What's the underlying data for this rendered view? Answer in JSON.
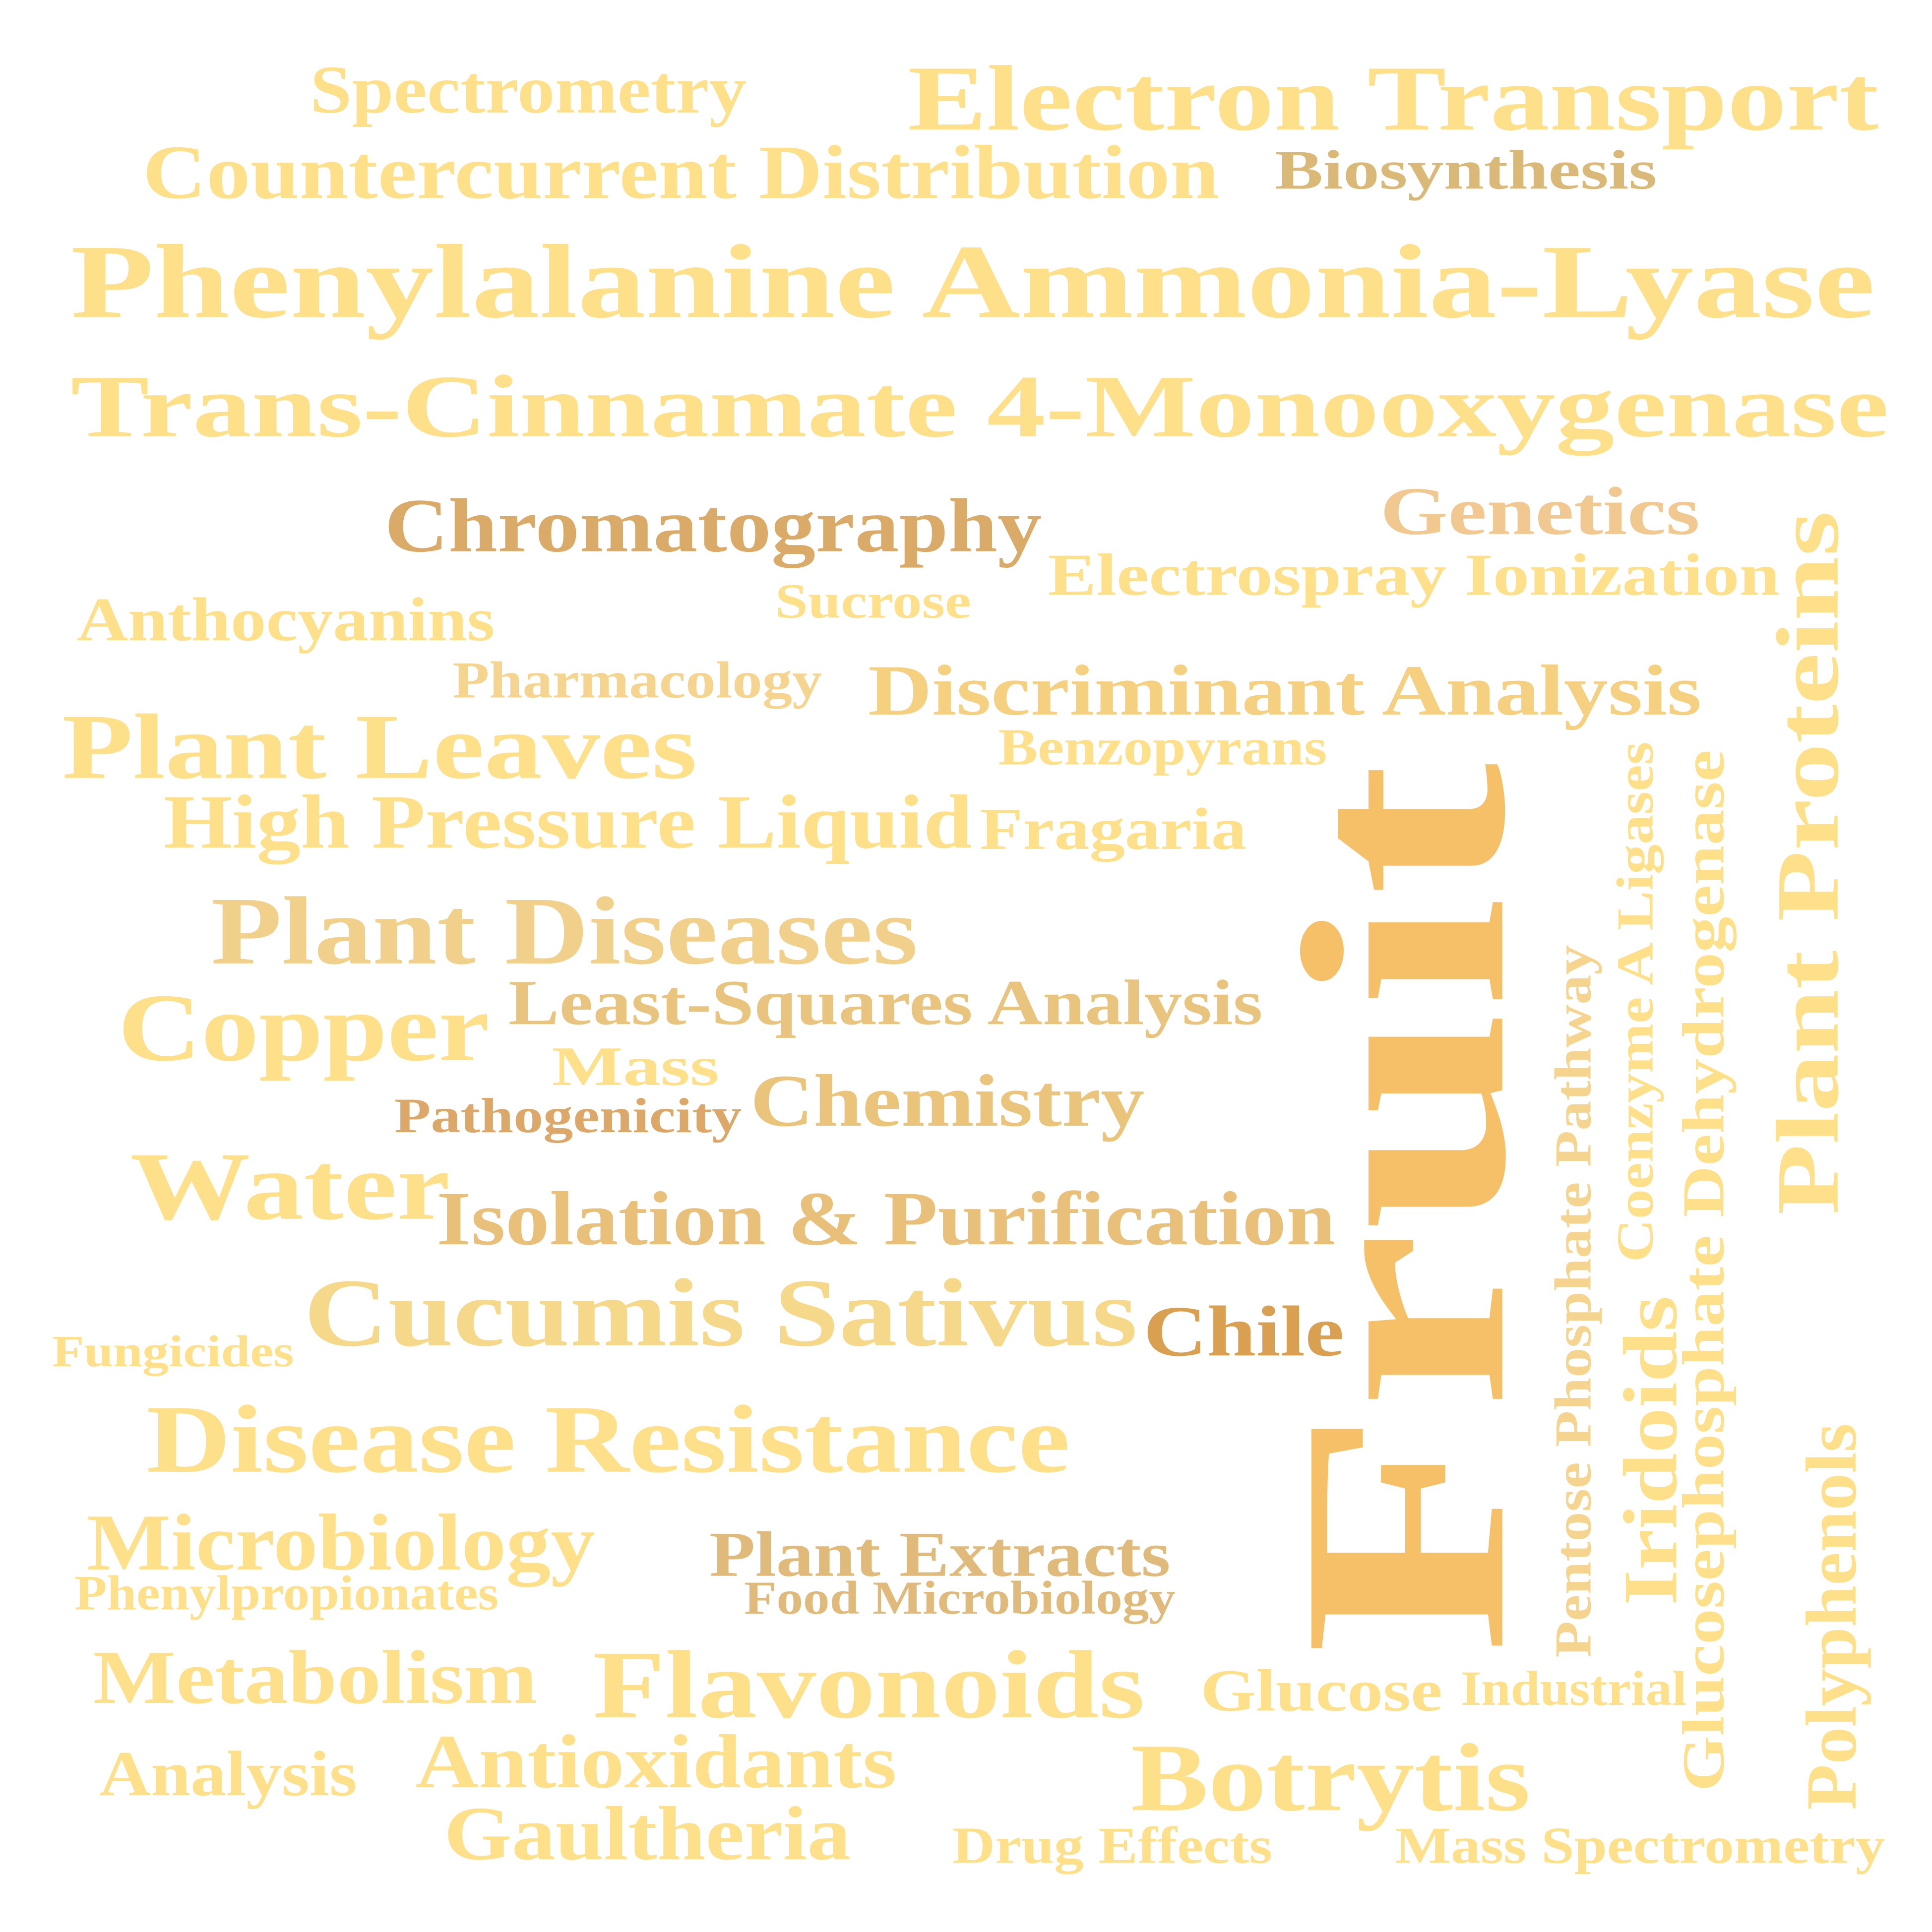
{
  "words": [
    {
      "text": "Spectrometry",
      "color": "#FFE08A"
    },
    {
      "text": "Electron Transport",
      "color": "#FFE08A"
    },
    {
      "text": "Countercurrent Distribution",
      "color": "#FFE08A"
    },
    {
      "text": "Biosynthesis",
      "color": "#D9B878"
    },
    {
      "text": "Phenylalanine Ammonia-Lyase",
      "color": "#FFE08A"
    },
    {
      "text": "Trans-Cinnamate 4-Monooxygenase",
      "color": "#FFE08A"
    },
    {
      "text": "Chromatography",
      "color": "#D9AA68"
    },
    {
      "text": "Genetics",
      "color": "#F0C890"
    },
    {
      "text": "Electrospray Ionization",
      "color": "#FFE08A"
    },
    {
      "text": "Sucrose",
      "color": "#FFE08A"
    },
    {
      "text": "Anthocyanins",
      "color": "#FFE08A"
    },
    {
      "text": "Pharmacology",
      "color": "#F5D490"
    },
    {
      "text": "Discriminant Analysis",
      "color": "#F5D080"
    },
    {
      "text": "Plant Proteins",
      "color": "#FFE08A"
    },
    {
      "text": "Plant Leaves",
      "color": "#FFE08A"
    },
    {
      "text": "Benzopyrans",
      "color": "#FFE08A"
    },
    {
      "text": "High Pressure Liquid",
      "color": "#FFE08A"
    },
    {
      "text": "Fragaria",
      "color": "#FFE08A"
    },
    {
      "text": "Fruit",
      "color": "#F5C068"
    },
    {
      "text": "Coenzyme A Ligases",
      "color": "#FFE08A"
    },
    {
      "text": "Glucosephosphate Dehydrogenase",
      "color": "#FFE08A"
    },
    {
      "text": "Pentose Phosphate Pathway",
      "color": "#F5D490"
    },
    {
      "text": "Plant Diseases",
      "color": "#F0D08A"
    },
    {
      "text": "Least-Squares Analysis",
      "color": "#E8C47E"
    },
    {
      "text": "Copper",
      "color": "#FFE08A"
    },
    {
      "text": "Mass",
      "color": "#FFE08A"
    },
    {
      "text": "Pathogenicity",
      "color": "#DCA86A"
    },
    {
      "text": "Chemistry",
      "color": "#EAC47A"
    },
    {
      "text": "Water",
      "color": "#FFE08A"
    },
    {
      "text": "Isolation & Purification",
      "color": "#E8C07A"
    },
    {
      "text": "Cucumis Sativus",
      "color": "#F5D88A"
    },
    {
      "text": "Chile",
      "color": "#D8A050"
    },
    {
      "text": "Fungicides",
      "color": "#FFE08A"
    },
    {
      "text": "Iridoids",
      "color": "#FFE08A"
    },
    {
      "text": "Disease Resistance",
      "color": "#FFE08A"
    },
    {
      "text": "Microbiology",
      "color": "#FFE08A"
    },
    {
      "text": "Phenylpropionates",
      "color": "#FFE08A"
    },
    {
      "text": "Plant Extracts",
      "color": "#E0BA7A"
    },
    {
      "text": "Food Microbiology",
      "color": "#E0BA7A"
    },
    {
      "text": "Polyphenols",
      "color": "#FFE08A"
    },
    {
      "text": "Metabolism",
      "color": "#FFE08A"
    },
    {
      "text": "Flavonoids",
      "color": "#FFE08A"
    },
    {
      "text": "Glucose",
      "color": "#FFE08A"
    },
    {
      "text": "Industrial",
      "color": "#FFE08A"
    },
    {
      "text": "Analysis",
      "color": "#FFE08A"
    },
    {
      "text": "Antioxidants",
      "color": "#FFE08A"
    },
    {
      "text": "Botrytis",
      "color": "#FFE08A"
    },
    {
      "text": "Gaultheria",
      "color": "#FFE08A"
    },
    {
      "text": "Drug Effects",
      "color": "#FFE08A"
    },
    {
      "text": "Mass Spectrometry",
      "color": "#FFE08A"
    }
  ]
}
